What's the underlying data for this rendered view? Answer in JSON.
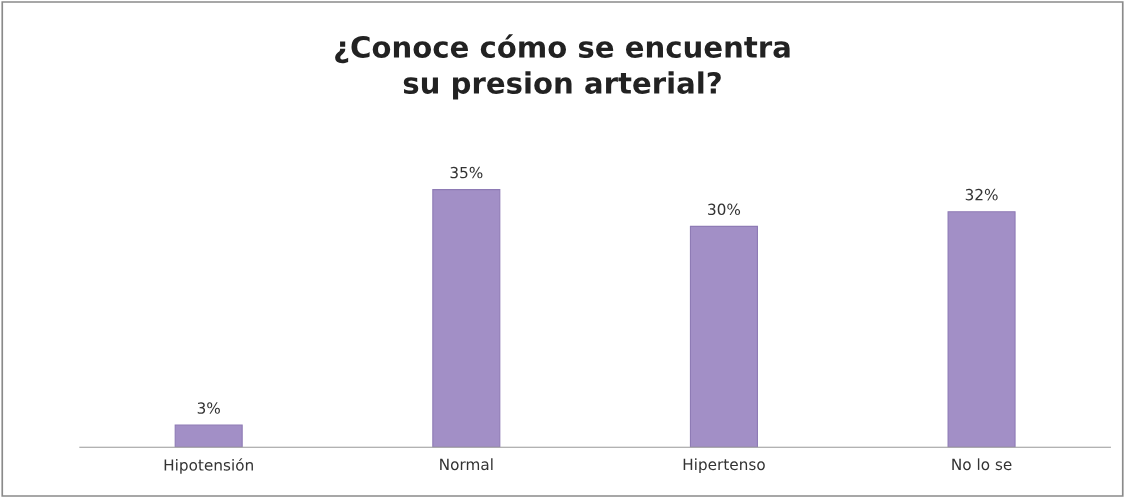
{
  "chart_data": {
    "type": "bar",
    "title": "¿Conoce cómo se encuentra\nsu presion arterial?",
    "categories": [
      "Hipotensión",
      "Normal",
      "Hipertenso",
      "No lo se"
    ],
    "values": [
      3,
      35,
      30,
      32
    ],
    "value_labels": [
      "3%",
      "35%",
      "30%",
      "32%"
    ],
    "color": "#a28fc6",
    "grid": false,
    "legend": false
  }
}
